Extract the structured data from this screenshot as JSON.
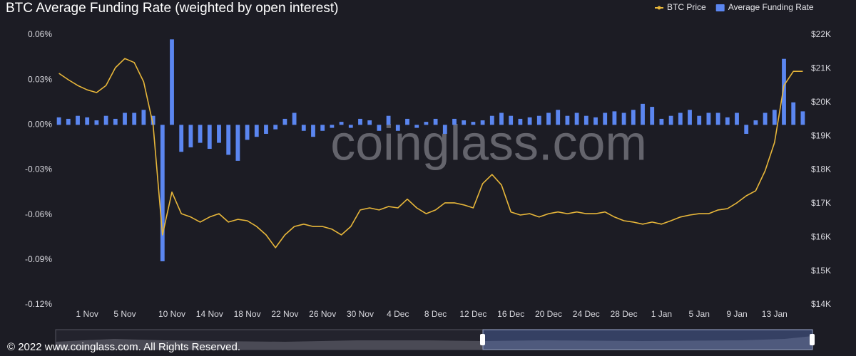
{
  "chart_data": {
    "type": "bar-line",
    "title": "BTC Average Funding Rate  (weighted by open interest)",
    "watermark": "coinglass.com",
    "footer": "© 2022 www.coinglass.com. All Rights Reserved.",
    "categories": [
      null,
      null,
      null,
      "1 Nov",
      null,
      null,
      null,
      "5 Nov",
      null,
      null,
      null,
      null,
      "10 Nov",
      null,
      null,
      null,
      "14 Nov",
      null,
      null,
      null,
      "18 Nov",
      null,
      null,
      null,
      "22 Nov",
      null,
      null,
      null,
      "26 Nov",
      null,
      null,
      null,
      "30 Nov",
      null,
      null,
      null,
      "4 Dec",
      null,
      null,
      null,
      "8 Dec",
      null,
      null,
      null,
      "12 Dec",
      null,
      null,
      null,
      "16 Dec",
      null,
      null,
      null,
      "20 Dec",
      null,
      null,
      null,
      "24 Dec",
      null,
      null,
      null,
      "28 Dec",
      null,
      null,
      null,
      "1 Jan",
      null,
      null,
      null,
      "5 Jan",
      null,
      null,
      null,
      "9 Jan",
      null,
      null,
      null,
      "13 Jan",
      null,
      null,
      null
    ],
    "series": [
      {
        "name": "Average Funding Rate",
        "type": "bar",
        "color": "#5b86f0",
        "axis": "y",
        "values": [
          0.005,
          0.004,
          0.006,
          0.005,
          0.003,
          0.006,
          0.004,
          0.008,
          0.008,
          0.01,
          0.006,
          -0.091,
          0.057,
          -0.018,
          -0.015,
          -0.012,
          -0.016,
          -0.012,
          -0.02,
          -0.024,
          -0.01,
          -0.008,
          -0.006,
          -0.003,
          0.004,
          0.008,
          -0.004,
          -0.008,
          -0.004,
          -0.002,
          0.002,
          -0.002,
          0.004,
          0.003,
          -0.004,
          0.006,
          -0.004,
          0.004,
          -0.002,
          0.002,
          0.004,
          -0.006,
          0.004,
          0.003,
          0.002,
          0.003,
          0.006,
          0.008,
          0.006,
          0.004,
          0.005,
          0.006,
          0.008,
          0.01,
          0.006,
          0.008,
          0.006,
          0.005,
          0.008,
          0.009,
          0.008,
          0.01,
          0.014,
          0.012,
          0.004,
          0.006,
          0.008,
          0.01,
          0.006,
          0.008,
          0.008,
          0.005,
          0.008,
          -0.006,
          0.003,
          0.008,
          0.01,
          0.044,
          0.015,
          0.009
        ]
      },
      {
        "name": "BTC Price",
        "type": "line",
        "color": "#e8b73a",
        "axis": "y2",
        "values": [
          20860,
          20670,
          20500,
          20370,
          20290,
          20500,
          21030,
          21300,
          21180,
          20610,
          19340,
          16070,
          17340,
          16700,
          16600,
          16450,
          16600,
          16700,
          16450,
          16530,
          16490,
          16320,
          16070,
          15690,
          16070,
          16320,
          16390,
          16320,
          16320,
          16240,
          16070,
          16320,
          16810,
          16870,
          16810,
          16910,
          16870,
          17130,
          16870,
          16700,
          16810,
          17020,
          17020,
          16960,
          16870,
          17590,
          17860,
          17550,
          16750,
          16660,
          16700,
          16600,
          16700,
          16750,
          16700,
          16750,
          16700,
          16700,
          16750,
          16600,
          16490,
          16450,
          16390,
          16450,
          16390,
          16490,
          16600,
          16660,
          16700,
          16700,
          16810,
          16850,
          17020,
          17230,
          17380,
          17970,
          18810,
          20500,
          20920,
          20920
        ]
      }
    ],
    "ylim": [
      -0.12,
      0.06
    ],
    "yticks": [
      {
        "value": -0.12,
        "label": "-0.12%"
      },
      {
        "value": -0.09,
        "label": "-0.09%"
      },
      {
        "value": -0.06,
        "label": "-0.06%"
      },
      {
        "value": -0.03,
        "label": "-0.03%"
      },
      {
        "value": 0,
        "label": "0.00%"
      },
      {
        "value": 0.03,
        "label": "0.03%"
      },
      {
        "value": 0.06,
        "label": "0.06%"
      }
    ],
    "y2lim": [
      14000,
      22000
    ],
    "y2ticks": [
      {
        "value": 14000,
        "label": "$14K"
      },
      {
        "value": 15000,
        "label": "$15K"
      },
      {
        "value": 16000,
        "label": "$16K"
      },
      {
        "value": 17000,
        "label": "$17K"
      },
      {
        "value": 18000,
        "label": "$18K"
      },
      {
        "value": 19000,
        "label": "$19K"
      },
      {
        "value": 20000,
        "label": "$20K"
      },
      {
        "value": 21000,
        "label": "$21K"
      },
      {
        "value": 22000,
        "label": "$22K"
      }
    ]
  }
}
